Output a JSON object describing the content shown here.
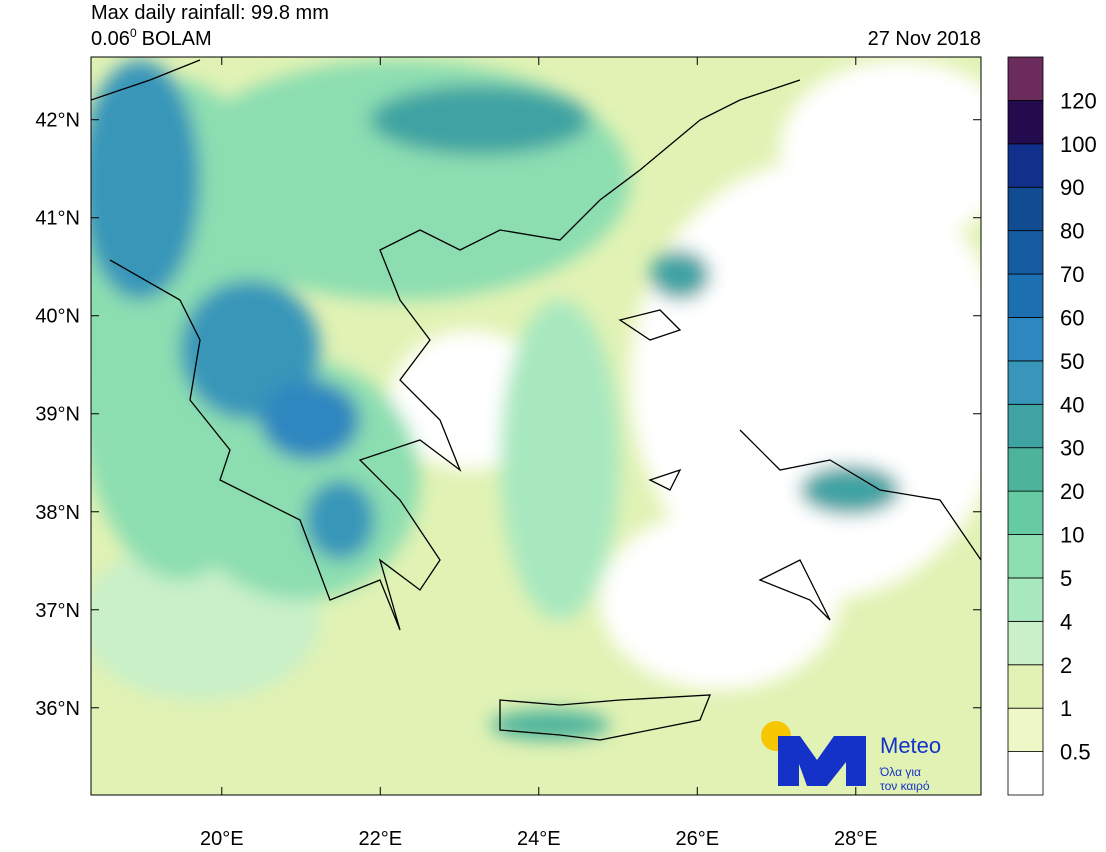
{
  "header": {
    "title": "Max daily rainfall: 99.8 mm",
    "model_resolution": "0.06",
    "degree_mark": "0",
    "model": "BOLAM",
    "date": "27 Nov 2018"
  },
  "map": {
    "lon_range": [
      18.35,
      29.58
    ],
    "lat_range": [
      35.11,
      42.64
    ],
    "lon_ticks": [
      {
        "value": 20,
        "label": "20°E"
      },
      {
        "value": 22,
        "label": "22°E"
      },
      {
        "value": 24,
        "label": "24°E"
      },
      {
        "value": 26,
        "label": "26°E"
      },
      {
        "value": 28,
        "label": "28°E"
      }
    ],
    "lat_ticks": [
      {
        "value": 36,
        "label": "36°N"
      },
      {
        "value": 37,
        "label": "37°N"
      },
      {
        "value": 38,
        "label": "38°N"
      },
      {
        "value": 39,
        "label": "39°N"
      },
      {
        "value": 40,
        "label": "40°N"
      },
      {
        "value": 41,
        "label": "41°N"
      },
      {
        "value": 42,
        "label": "42°N"
      }
    ]
  },
  "colorbar": {
    "levels": [
      0.5,
      1,
      2,
      4,
      5,
      10,
      20,
      30,
      40,
      50,
      60,
      70,
      80,
      90,
      100,
      120
    ],
    "colors": [
      "#ffffff",
      "#eef7c6",
      "#e1f2b4",
      "#c9f0c9",
      "#a8e8bf",
      "#8cdeb1",
      "#66cba3",
      "#4db49b",
      "#3fa3a3",
      "#3796b9",
      "#2f87bf",
      "#1c6fb1",
      "#155b9f",
      "#114b91",
      "#10308c",
      "#240b4e",
      "#6b2b5c"
    ]
  },
  "logo": {
    "name": "Meteo",
    "tagline": [
      "Όλα για",
      "τον καιρό"
    ]
  }
}
